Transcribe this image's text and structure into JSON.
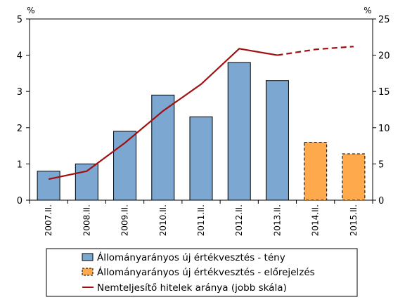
{
  "chart_data": {
    "type": "bar",
    "categories": [
      "2007.II.",
      "2008.II.",
      "2009.II.",
      "2010.II.",
      "2011.II.",
      "2012.II.",
      "2013.II.",
      "2014.II.",
      "2015.II."
    ],
    "left_axis": {
      "unit": "%",
      "ylim": [
        0,
        5
      ],
      "ticks": [
        0,
        1,
        2,
        3,
        4,
        5
      ]
    },
    "right_axis": {
      "unit": "%",
      "ylim": [
        0,
        25
      ],
      "ticks": [
        0,
        5,
        10,
        15,
        20,
        25
      ]
    },
    "series": [
      {
        "name": "Állományarányos új értékvesztés - tény",
        "kind": "bar",
        "axis": "left",
        "color": "#7BA7D1",
        "values": [
          0.8,
          1.0,
          1.9,
          2.9,
          2.3,
          3.8,
          3.3,
          null,
          null
        ]
      },
      {
        "name": "Állományarányos új értékvesztés - előrejelzés",
        "kind": "bar",
        "axis": "left",
        "color": "#FFA94D",
        "dashed_border": true,
        "values": [
          null,
          null,
          null,
          null,
          null,
          null,
          null,
          1.6,
          1.28
        ]
      },
      {
        "name": "Nemteljesítő hitelek aránya (jobb skála)",
        "kind": "line",
        "axis": "right",
        "color": "#A01010",
        "values": [
          2.9,
          4.0,
          7.9,
          12.3,
          16.0,
          20.9,
          20.0,
          20.8,
          21.2
        ],
        "dashed_from_index": 6
      }
    ],
    "grid": false,
    "legend_position": "bottom"
  }
}
